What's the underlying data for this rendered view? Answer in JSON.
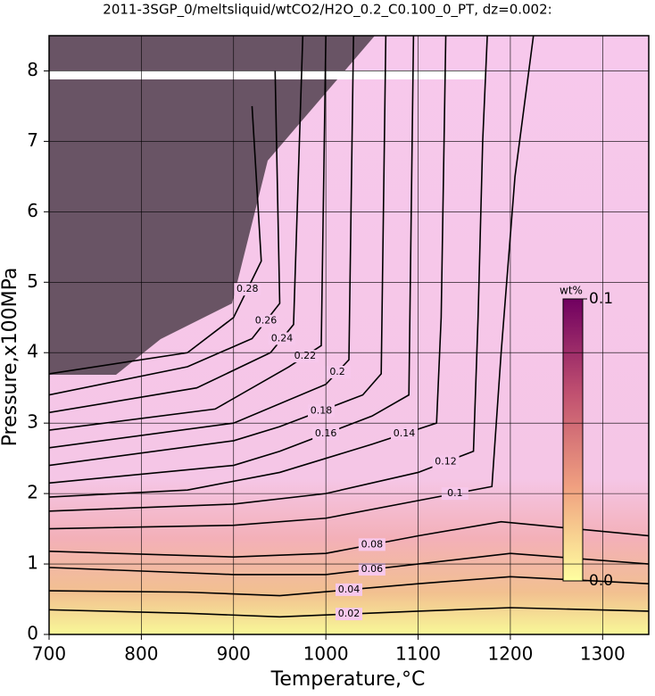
{
  "chart_data": {
    "type": "contour",
    "title": "2011-3SGP_0/meltsliquid/wtCO2/H2O_0.2_C0.100_0_PT, dz=0.002:",
    "x_label": "Temperature,°C",
    "y_label": "Pressure,x100MPa",
    "xlim": [
      700,
      1350
    ],
    "xticks": [
      700,
      800,
      900,
      1000,
      1100,
      1200,
      1300
    ],
    "ylim": [
      0,
      8.5
    ],
    "yticks": [
      0,
      1,
      2,
      3,
      4,
      5,
      6,
      7,
      8
    ],
    "grid": true,
    "colorbar": {
      "label": "wt%",
      "lim": [
        0,
        0.1
      ],
      "ticks": [
        {
          "value": 0,
          "label": "0.0"
        },
        0.1
      ],
      "colors": [
        "#ffffa0",
        "#f0a080",
        "#c05070",
        "#700060"
      ]
    },
    "contours": [
      {
        "level": 0.02,
        "x": [
          700,
          850,
          950,
          1100,
          1200,
          1350
        ],
        "y": [
          0.35,
          0.3,
          0.25,
          0.33,
          0.38,
          0.33
        ]
      },
      {
        "level": 0.04,
        "x": [
          700,
          850,
          950,
          1100,
          1200,
          1350
        ],
        "y": [
          0.62,
          0.6,
          0.55,
          0.72,
          0.82,
          0.72
        ]
      },
      {
        "level": 0.06,
        "x": [
          700,
          900,
          1000,
          1100,
          1200,
          1350
        ],
        "y": [
          0.95,
          0.85,
          0.85,
          1.0,
          1.15,
          1.0
        ]
      },
      {
        "level": 0.08,
        "x": [
          700,
          900,
          1000,
          1100,
          1190,
          1350
        ],
        "y": [
          1.18,
          1.1,
          1.15,
          1.4,
          1.6,
          1.4
        ]
      },
      {
        "level": 0.1,
        "x": [
          700,
          900,
          1000,
          1100,
          1180,
          1190,
          1205,
          1225
        ],
        "y": [
          1.5,
          1.55,
          1.65,
          1.9,
          2.1,
          4,
          6.5,
          8.5
        ]
      },
      {
        "level": 0.12,
        "x": [
          700,
          900,
          1000,
          1100,
          1160,
          1165,
          1170,
          1175
        ],
        "y": [
          1.75,
          1.85,
          2.0,
          2.3,
          2.6,
          4.5,
          7,
          8.5
        ]
      },
      {
        "level": 0.14,
        "x": [
          700,
          850,
          950,
          1050,
          1120,
          1125,
          1130
        ],
        "y": [
          1.95,
          2.05,
          2.3,
          2.7,
          3.0,
          4.5,
          8.5
        ]
      },
      {
        "level": 0.16,
        "x": [
          700,
          900,
          950,
          1050,
          1090,
          1095
        ],
        "y": [
          2.15,
          2.4,
          2.6,
          3.1,
          3.4,
          8.5
        ]
      },
      {
        "level": 0.18,
        "x": [
          700,
          900,
          950,
          1040,
          1060,
          1065
        ],
        "y": [
          2.4,
          2.75,
          2.95,
          3.4,
          3.7,
          8.5
        ]
      },
      {
        "level": 0.2,
        "x": [
          700,
          900,
          1000,
          1025,
          1030
        ],
        "y": [
          2.65,
          3.0,
          3.55,
          3.9,
          8.5
        ]
      },
      {
        "level": 0.22,
        "x": [
          700,
          880,
          960,
          995,
          1000
        ],
        "y": [
          2.9,
          3.2,
          3.8,
          4.1,
          8.5
        ]
      },
      {
        "level": 0.24,
        "x": [
          700,
          860,
          940,
          965,
          975
        ],
        "y": [
          3.15,
          3.5,
          4.0,
          4.4,
          8.5
        ]
      },
      {
        "level": 0.26,
        "x": [
          700,
          850,
          920,
          950,
          945
        ],
        "y": [
          3.4,
          3.8,
          4.2,
          4.7,
          8.0
        ]
      },
      {
        "level": 0.28,
        "x": [
          700,
          850,
          900,
          930,
          920
        ],
        "y": [
          3.7,
          4.0,
          4.5,
          5.3,
          7.5
        ]
      }
    ]
  }
}
